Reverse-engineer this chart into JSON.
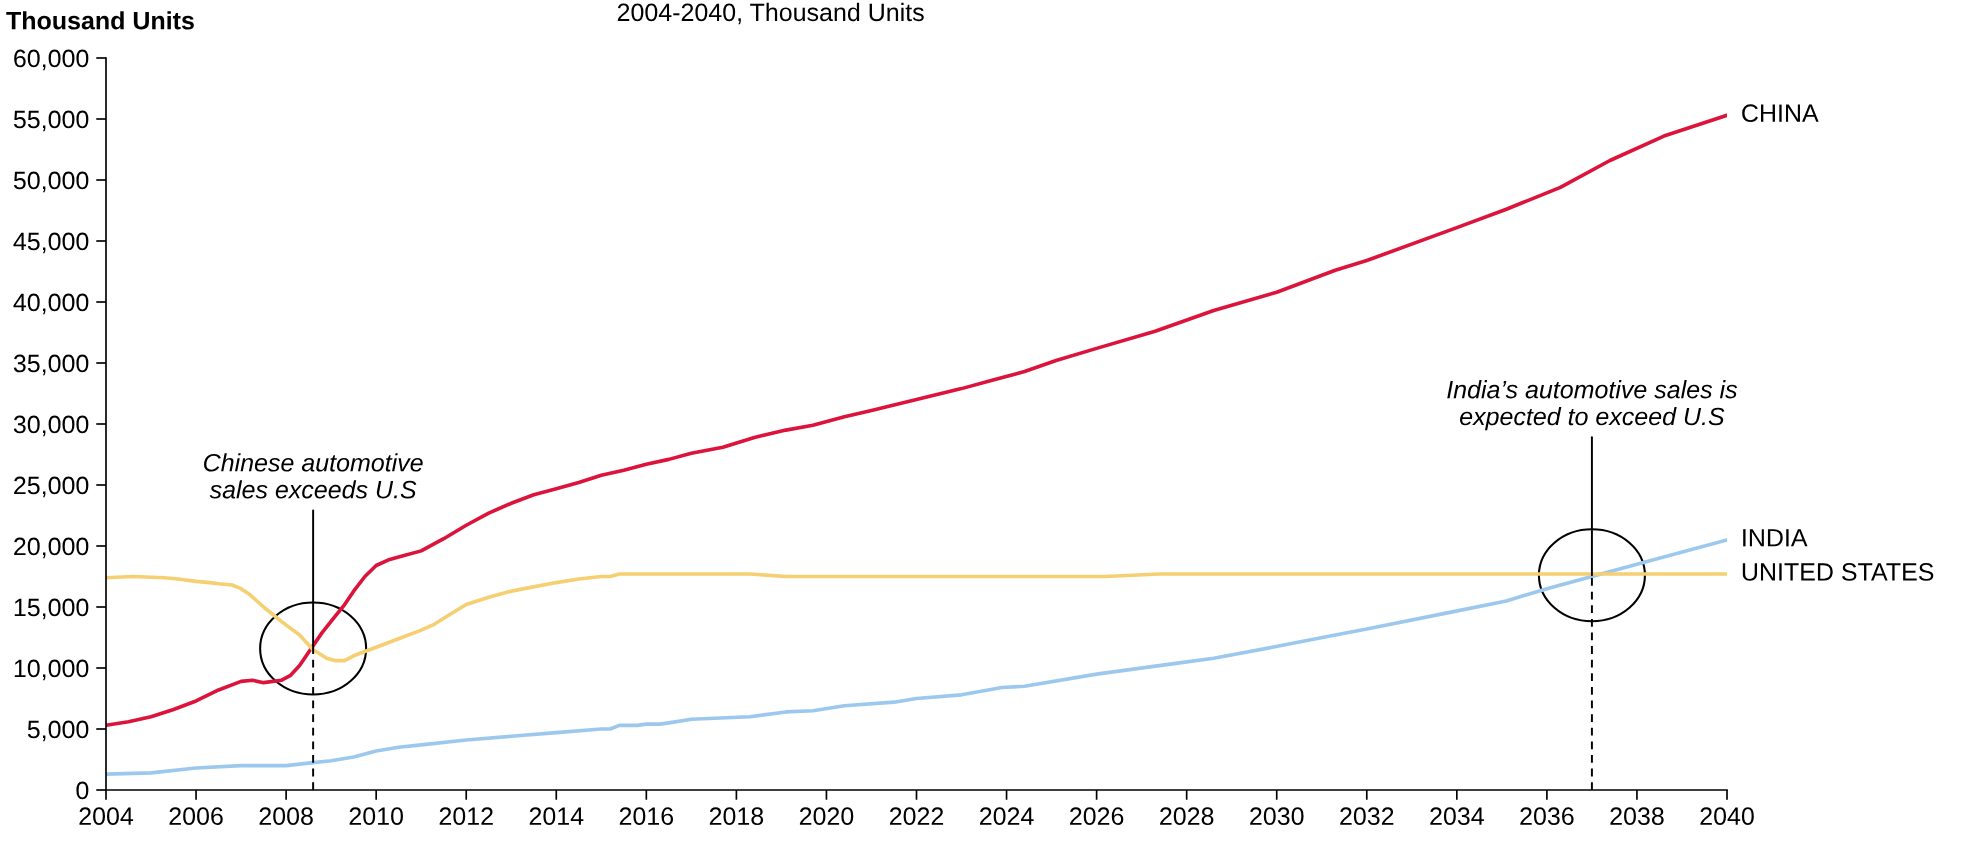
{
  "chart_data": {
    "type": "line",
    "title": "2004-2040, Thousand Units",
    "ylabel": "Thousand Units",
    "xlim": [
      2004,
      2040
    ],
    "xticks": [
      2004,
      2006,
      2008,
      2010,
      2012,
      2014,
      2016,
      2018,
      2020,
      2022,
      2024,
      2026,
      2028,
      2030,
      2032,
      2034,
      2036,
      2038,
      2040
    ],
    "ylim": [
      0,
      60000
    ],
    "yticks": [
      {
        "value": 0,
        "label": "0"
      },
      {
        "value": 5000,
        "label": "5,000"
      },
      {
        "value": 10000,
        "label": "10,000"
      },
      {
        "value": 15000,
        "label": "15,000"
      },
      {
        "value": 20000,
        "label": "20,000"
      },
      {
        "value": 25000,
        "label": "25,000"
      },
      {
        "value": 30000,
        "label": "30,000"
      },
      {
        "value": 35000,
        "label": "35,000"
      },
      {
        "value": 40000,
        "label": "40,000"
      },
      {
        "value": 45000,
        "label": "45,000"
      },
      {
        "value": 50000,
        "label": "50,000"
      },
      {
        "value": 55000,
        "label": "55,000"
      },
      {
        "value": 60000,
        "label": "60,000"
      }
    ],
    "series": [
      {
        "name": "CHINA",
        "color": "#dc143c",
        "x": [
          2004,
          2004.5,
          2005,
          2005.5,
          2006,
          2006.5,
          2007,
          2007.25,
          2007.5,
          2007.9,
          2008.1,
          2008.3,
          2008.5,
          2008.8,
          2009.1,
          2009.3,
          2009.5,
          2009.75,
          2010,
          2010.3,
          2010.6,
          2011,
          2011.5,
          2012,
          2012.5,
          2013,
          2013.5,
          2014,
          2014.5,
          2015,
          2015.5,
          2016,
          2016.5,
          2017,
          2017.7,
          2018.4,
          2019.1,
          2019.7,
          2020.4,
          2021,
          2022,
          2023,
          2023.7,
          2024.4,
          2025.1,
          2026,
          2027.3,
          2028.6,
          2030,
          2031.3,
          2032,
          2034,
          2035.1,
          2036.3,
          2037.4,
          2038.6,
          2040
        ],
        "values": [
          5300,
          5600,
          6000,
          6600,
          7300,
          8200,
          8900,
          9000,
          8800,
          9000,
          9400,
          10200,
          11300,
          12900,
          14300,
          15200,
          16300,
          17500,
          18400,
          18900,
          19200,
          19600,
          20600,
          21700,
          22700,
          23500,
          24200,
          24700,
          25200,
          25800,
          26200,
          26700,
          27100,
          27600,
          28100,
          28900,
          29500,
          29900,
          30600,
          31100,
          32000,
          32900,
          33600,
          34300,
          35200,
          36200,
          37600,
          39300,
          40800,
          42600,
          43400,
          46100,
          47600,
          49400,
          51600,
          53600,
          55300
        ]
      },
      {
        "name": "INDIA",
        "color": "#9dc8ee",
        "x": [
          2004,
          2005,
          2006,
          2007,
          2008,
          2008.5,
          2009,
          2009.5,
          2010,
          2010.5,
          2011,
          2012,
          2013,
          2014,
          2015,
          2015.2,
          2015.4,
          2015.8,
          2016,
          2016.3,
          2016.5,
          2017,
          2018.3,
          2019.1,
          2019.7,
          2020.4,
          2021.5,
          2022,
          2023,
          2023.9,
          2024.4,
          2026,
          2027.8,
          2028.6,
          2029.9,
          2031.3,
          2032,
          2033.9,
          2035.1,
          2036,
          2037,
          2038,
          2040
        ],
        "values": [
          1300,
          1400,
          1800,
          2000,
          2000,
          2200,
          2400,
          2700,
          3200,
          3500,
          3700,
          4100,
          4400,
          4700,
          5000,
          5000,
          5300,
          5300,
          5400,
          5400,
          5500,
          5800,
          6000,
          6400,
          6500,
          6900,
          7200,
          7500,
          7800,
          8400,
          8500,
          9500,
          10400,
          10800,
          11700,
          12700,
          13200,
          14600,
          15500,
          16500,
          17500,
          18500,
          20500
        ]
      },
      {
        "name": "UNITED STATES",
        "color": "#f5cf72",
        "x": [
          2004,
          2004.6,
          2005.3,
          2005.6,
          2006,
          2006.3,
          2006.5,
          2006.8,
          2007,
          2007.2,
          2007.5,
          2007.9,
          2008.3,
          2008.6,
          2008.9,
          2009.1,
          2009.3,
          2009.5,
          2010,
          2010.5,
          2011,
          2011.3,
          2011.6,
          2012,
          2012.5,
          2013,
          2014,
          2014.5,
          2015,
          2015.2,
          2015.4,
          2018.3,
          2019.1,
          2026.2,
          2027.4,
          2040
        ],
        "values": [
          17400,
          17500,
          17400,
          17300,
          17100,
          17000,
          16900,
          16800,
          16500,
          16000,
          15000,
          13800,
          12700,
          11500,
          10800,
          10600,
          10600,
          11000,
          11700,
          12400,
          13100,
          13600,
          14300,
          15200,
          15800,
          16300,
          17000,
          17300,
          17500,
          17500,
          17700,
          17700,
          17500,
          17500,
          17700,
          17700
        ]
      }
    ],
    "annotations": [
      {
        "text": "Chinese automotive\nsales exceeds U.S",
        "x": 2008.6,
        "y": 11600
      },
      {
        "text": "India’s automotive sales is\nexpected to exceed U.S",
        "x": 2037,
        "y": 17600
      }
    ]
  }
}
